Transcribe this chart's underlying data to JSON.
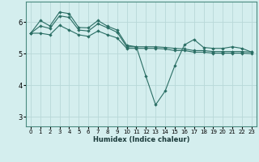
{
  "xlabel": "Humidex (Indice chaleur)",
  "bg_color": "#d4eeee",
  "grid_color": "#b8d8d8",
  "line_color": "#2a6e64",
  "spine_color": "#4a8a80",
  "xlim": [
    -0.5,
    23.5
  ],
  "ylim": [
    2.7,
    6.65
  ],
  "xticks": [
    0,
    1,
    2,
    3,
    4,
    5,
    6,
    7,
    8,
    9,
    10,
    11,
    12,
    13,
    14,
    15,
    16,
    17,
    18,
    19,
    20,
    21,
    22,
    23
  ],
  "yticks": [
    3,
    4,
    5,
    6
  ],
  "line1_x": [
    0,
    1,
    2,
    3,
    4,
    5,
    6,
    7,
    8,
    9,
    10,
    11,
    12,
    13,
    14,
    15,
    16,
    17,
    18,
    19,
    20,
    21,
    22,
    23
  ],
  "line1_y": [
    5.65,
    6.05,
    5.88,
    6.32,
    6.27,
    5.83,
    5.82,
    6.05,
    5.87,
    5.75,
    5.27,
    5.22,
    4.28,
    3.38,
    3.82,
    4.62,
    5.28,
    5.45,
    5.2,
    5.17,
    5.17,
    5.22,
    5.17,
    5.05
  ],
  "line2_x": [
    0,
    1,
    2,
    3,
    4,
    5,
    6,
    7,
    8,
    9,
    10,
    11,
    12,
    13,
    14,
    15,
    16,
    17,
    18,
    19,
    20,
    21,
    22,
    23
  ],
  "line2_y": [
    5.65,
    5.88,
    5.8,
    6.2,
    6.15,
    5.75,
    5.72,
    5.95,
    5.82,
    5.68,
    5.22,
    5.22,
    5.22,
    5.22,
    5.2,
    5.17,
    5.15,
    5.1,
    5.1,
    5.07,
    5.07,
    5.07,
    5.07,
    5.05
  ],
  "line3_x": [
    0,
    1,
    2,
    3,
    4,
    5,
    6,
    7,
    8,
    9,
    10,
    11,
    12,
    13,
    14,
    15,
    16,
    17,
    18,
    19,
    20,
    21,
    22,
    23
  ],
  "line3_y": [
    5.65,
    5.65,
    5.6,
    5.9,
    5.75,
    5.6,
    5.55,
    5.72,
    5.6,
    5.5,
    5.17,
    5.17,
    5.17,
    5.17,
    5.15,
    5.1,
    5.1,
    5.05,
    5.05,
    5.02,
    5.02,
    5.02,
    5.02,
    5.0
  ]
}
